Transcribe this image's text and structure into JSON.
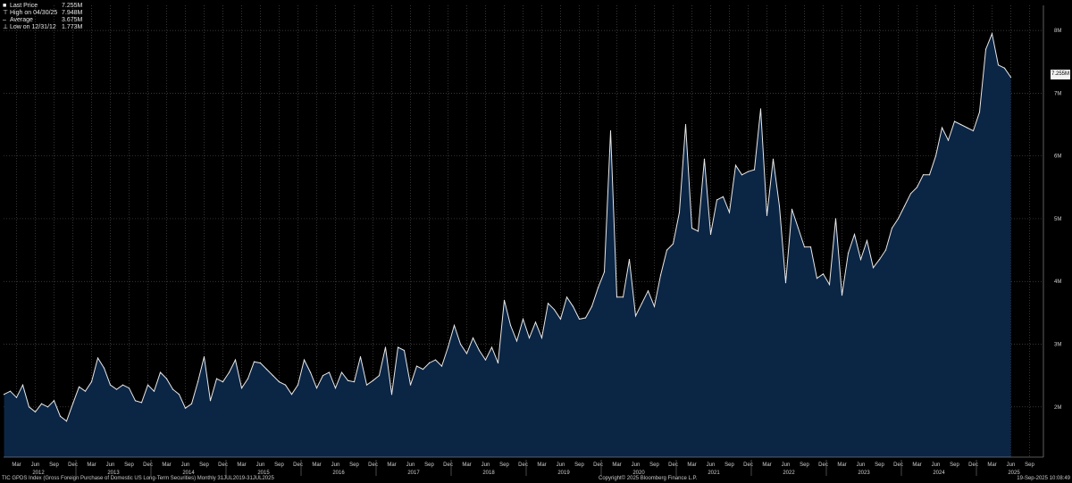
{
  "legend": {
    "last_price_label": "Last Price",
    "last_price_value": "7.255M",
    "high_label": "High on 04/30/25",
    "high_value": "7.948M",
    "average_label": "Average",
    "average_value": "3.675M",
    "low_label": "Low on 12/31/12",
    "low_value": "1.773M"
  },
  "price_tag": "7.255M",
  "footer": {
    "left": "TIC GPDS Index  (Gross Foreign Purchase of Domestic US Long-Term Securities)  Monthly 31JUL2019-31JUL2025",
    "center": "Copyright© 2025 Bloomberg Finance L.P.",
    "right": "19-Sep-2025 10:08:49"
  },
  "colors": {
    "background": "#000000",
    "area_fill": "#0b2545",
    "line": "#e8e8e8",
    "grid": "#4a4a4a",
    "text": "#d0d0d0"
  },
  "chart_data": {
    "type": "area",
    "title": "",
    "xlabel": "",
    "ylabel": "",
    "ylim": [
      1.2,
      8.4
    ],
    "y_ticks": [
      "2M",
      "3M",
      "4M",
      "5M",
      "6M",
      "7M",
      "8M"
    ],
    "y_tick_values": [
      2,
      3,
      4,
      5,
      6,
      7,
      8
    ],
    "x_month_labels": [
      "Mar",
      "Jun",
      "Sep",
      "Dec",
      "Mar",
      "Jun",
      "Sep",
      "Dec",
      "Mar",
      "Jun",
      "Sep",
      "Dec",
      "Mar",
      "Jun",
      "Sep",
      "Dec",
      "Mar",
      "Jun",
      "Sep",
      "Dec",
      "Mar",
      "Jun",
      "Sep",
      "Dec",
      "Mar",
      "Jun",
      "Sep",
      "Dec",
      "Mar",
      "Jun",
      "Sep",
      "Dec",
      "Mar",
      "Jun",
      "Sep",
      "Dec",
      "Mar",
      "Jun",
      "Sep",
      "Dec",
      "Mar",
      "Jun",
      "Sep",
      "Dec",
      "Mar",
      "Jun",
      "Sep",
      "Dec",
      "Mar",
      "Jun",
      "Sep",
      "Dec",
      "Mar",
      "Jun",
      "Sep"
    ],
    "x_year_labels": [
      "2012",
      "2013",
      "2014",
      "2015",
      "2016",
      "2017",
      "2018",
      "2019",
      "2020",
      "2021",
      "2022",
      "2023",
      "2024",
      "2025"
    ],
    "grid": true,
    "legend": "top-left",
    "x_start": "2012-01",
    "series": [
      {
        "name": "TIC GPDS Index",
        "values": [
          2.2,
          2.25,
          2.15,
          2.35,
          2.0,
          1.92,
          2.05,
          2.0,
          2.1,
          1.85,
          1.773,
          2.05,
          2.32,
          2.25,
          2.4,
          2.78,
          2.62,
          2.35,
          2.28,
          2.35,
          2.3,
          2.1,
          2.07,
          2.35,
          2.25,
          2.55,
          2.45,
          2.28,
          2.2,
          1.98,
          2.05,
          2.4,
          2.8,
          2.1,
          2.45,
          2.4,
          2.55,
          2.75,
          2.3,
          2.45,
          2.72,
          2.7,
          2.6,
          2.5,
          2.4,
          2.35,
          2.2,
          2.35,
          2.75,
          2.55,
          2.3,
          2.5,
          2.55,
          2.3,
          2.55,
          2.42,
          2.4,
          2.8,
          2.35,
          2.42,
          2.5,
          2.95,
          2.2,
          2.95,
          2.9,
          2.35,
          2.65,
          2.6,
          2.7,
          2.75,
          2.65,
          2.95,
          3.3,
          3.0,
          2.85,
          3.1,
          2.9,
          2.75,
          2.95,
          2.7,
          3.7,
          3.3,
          3.05,
          3.4,
          3.1,
          3.35,
          3.1,
          3.65,
          3.55,
          3.4,
          3.75,
          3.6,
          3.4,
          3.42,
          3.6,
          3.9,
          4.15,
          6.4,
          3.75,
          3.75,
          4.35,
          3.45,
          3.65,
          3.85,
          3.6,
          4.1,
          4.5,
          4.6,
          5.1,
          6.5,
          4.85,
          4.8,
          5.95,
          4.75,
          5.3,
          5.35,
          5.1,
          5.85,
          5.7,
          5.75,
          5.78,
          6.75,
          5.05,
          5.95,
          5.2,
          3.98,
          5.15,
          4.85,
          4.55,
          4.55,
          4.05,
          4.12,
          3.95,
          5.0,
          3.78,
          4.45,
          4.75,
          4.35,
          4.65,
          4.22,
          4.35,
          4.5,
          4.85,
          5.0,
          5.2,
          5.4,
          5.5,
          5.7,
          5.7,
          6.0,
          6.45,
          6.25,
          6.55,
          6.5,
          6.45,
          6.4,
          6.7,
          7.7,
          7.948,
          7.45,
          7.4,
          7.255
        ]
      }
    ]
  }
}
